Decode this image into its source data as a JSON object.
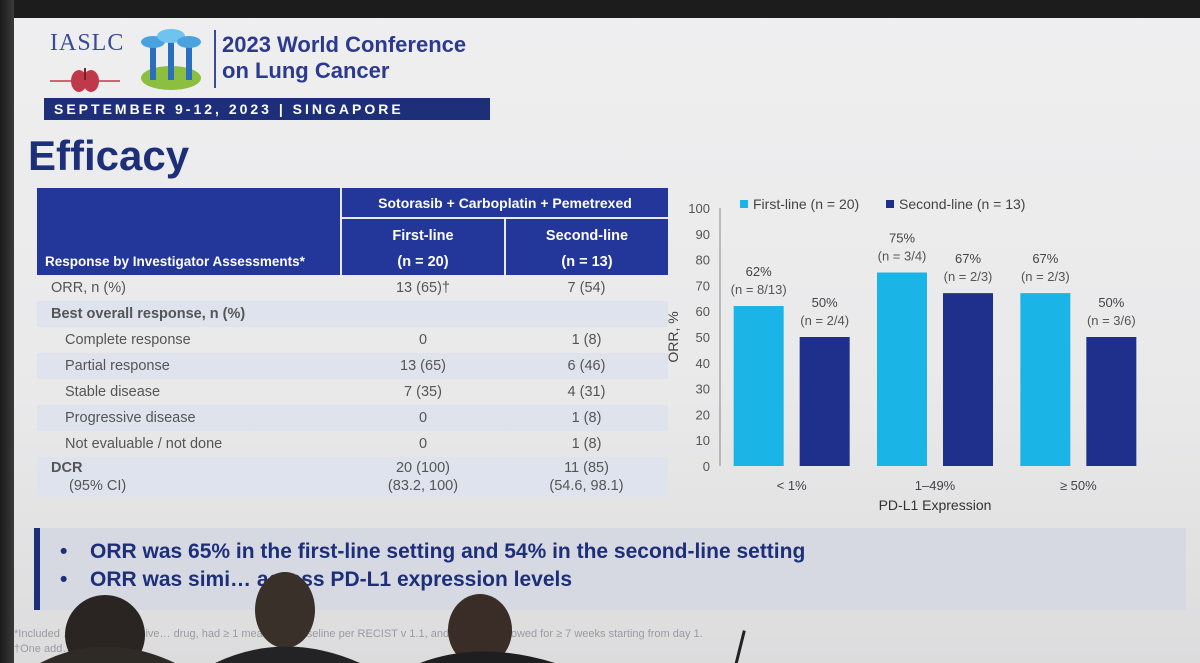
{
  "header": {
    "org": "IASLC",
    "conference_line1": "2023 World Conference",
    "conference_line2": "on Lung Cancer",
    "dateline": "SEPTEMBER 9-12, 2023 | SINGAPORE"
  },
  "slide_title": "Efficacy",
  "table": {
    "regimen": "Sotorasib + Carboplatin + Pemetrexed",
    "row_header": "Response by Investigator Assessments*",
    "col1": "First-line",
    "col1_n": "(n = 20)",
    "col2": "Second-line",
    "col2_n": "(n = 13)",
    "rows": [
      {
        "label": "ORR, n (%)",
        "v1": "13 (65)†",
        "v2": "7 (54)"
      },
      {
        "label": "Best overall response, n (%)",
        "v1": "",
        "v2": ""
      },
      {
        "label": "Complete response",
        "v1": "0",
        "v2": "1 (8)"
      },
      {
        "label": "Partial response",
        "v1": "13 (65)",
        "v2": "6 (46)"
      },
      {
        "label": "Stable disease",
        "v1": "7 (35)",
        "v2": "4 (31)"
      },
      {
        "label": "Progressive disease",
        "v1": "0",
        "v2": "1 (8)"
      },
      {
        "label": "Not evaluable / not done",
        "v1": "0",
        "v2": "1 (8)"
      }
    ],
    "dcr_label": "DCR",
    "dcr_ci_label": "(95% CI)",
    "dcr_v1": "20 (100)",
    "dcr_v1_ci": "(83.2, 100)",
    "dcr_v2": "11 (85)",
    "dcr_v2_ci": "(54.6, 98.1)"
  },
  "chart_data": {
    "type": "bar",
    "categories": [
      "< 1%",
      "1–49%",
      "≥ 50%"
    ],
    "series": [
      {
        "name": "First-line (n = 20)",
        "values": [
          62,
          75,
          67
        ],
        "labels": [
          "62%",
          "75%",
          "67%"
        ],
        "sublabels": [
          "(n = 8/13)",
          "(n = 3/4)",
          "(n = 2/3)"
        ],
        "color": "#1ab4e6"
      },
      {
        "name": "Second-line (n = 13)",
        "values": [
          50,
          67,
          50
        ],
        "labels": [
          "50%",
          "67%",
          "50%"
        ],
        "sublabels": [
          "(n = 2/4)",
          "(n = 2/3)",
          "(n = 3/6)"
        ],
        "color": "#1e2f8c"
      }
    ],
    "xlabel": "PD-L1 Expression",
    "ylabel": "ORR, %",
    "ylim": [
      0,
      100
    ],
    "yticks": [
      "0",
      "10",
      "20",
      "30",
      "40",
      "50",
      "60",
      "70",
      "80",
      "90",
      "100"
    ],
    "grid": false,
    "legend": "top"
  },
  "summary": {
    "bullets": [
      "ORR was 65% in the first-line setting and 54% in the second-line setting",
      "ORR was simi… across PD-L1 expression levels"
    ]
  },
  "footnotes": [
    "*Included … ents who receive… drug, had ≥ 1 meas… at baseline per RECIST v 1.1, and could be followed for ≥ 7 weeks starting from day 1.",
    "†One add… an unconfi…"
  ],
  "colors": {
    "navy": "#1e2f7a",
    "header_blue": "#23369a",
    "cyan": "#1ab4e6",
    "dark_bar": "#1e2f8c"
  }
}
